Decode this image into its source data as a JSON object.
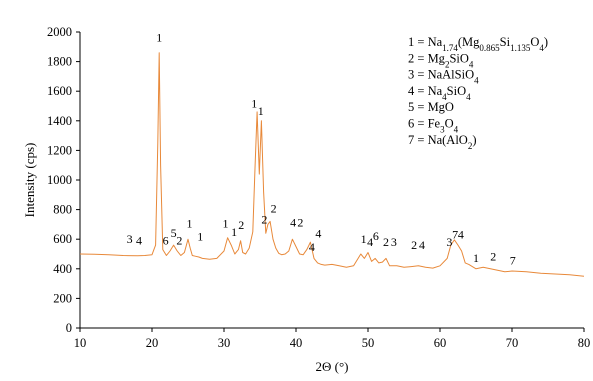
{
  "chart_data": {
    "type": "line",
    "xlabel": "2Θ (°)",
    "ylabel": "Intensity (cps)",
    "xlim": [
      10,
      80
    ],
    "ylim": [
      0,
      2000
    ],
    "xticks": [
      10,
      20,
      30,
      40,
      50,
      60,
      70,
      80
    ],
    "yticks": [
      0,
      200,
      400,
      600,
      800,
      1000,
      1200,
      1400,
      1600,
      1800,
      2000
    ],
    "grid": false,
    "legend_position": "top-right",
    "series_color": "#E8893A",
    "series": [
      {
        "x": [
          10,
          12,
          14,
          16,
          18,
          19,
          20,
          20.5,
          20.8,
          21.0,
          21.2,
          21.5,
          22,
          22.5,
          23,
          23.5,
          24,
          24.5,
          25,
          25.3,
          25.6,
          26,
          26.5,
          27,
          28,
          29,
          30,
          30.5,
          31,
          31.5,
          32,
          32.3,
          32.6,
          33,
          33.5,
          34,
          34.3,
          34.6,
          34.9,
          35.2,
          35.5,
          35.8,
          36.1,
          36.4,
          36.8,
          37.2,
          37.6,
          38,
          38.5,
          39,
          39.5,
          40,
          40.5,
          41,
          41.5,
          42,
          42.5,
          43,
          43.5,
          44,
          45,
          46,
          47,
          48,
          49,
          49.5,
          50,
          50.5,
          51,
          51.5,
          52,
          52.5,
          53,
          54,
          55,
          56,
          57,
          58,
          59,
          60,
          61,
          61.5,
          62,
          62.5,
          63,
          63.5,
          64,
          65,
          66,
          67,
          68,
          69,
          70,
          72,
          74,
          76,
          78,
          80
        ],
        "y": [
          500,
          498,
          495,
          490,
          488,
          490,
          495,
          560,
          1250,
          1860,
          1100,
          530,
          490,
          520,
          560,
          520,
          490,
          510,
          600,
          540,
          490,
          485,
          480,
          470,
          465,
          470,
          520,
          610,
          560,
          500,
          530,
          590,
          510,
          500,
          540,
          650,
          1080,
          1460,
          1040,
          1400,
          920,
          640,
          700,
          720,
          600,
          540,
          505,
          495,
          500,
          520,
          600,
          550,
          500,
          495,
          530,
          580,
          470,
          440,
          430,
          425,
          430,
          420,
          410,
          420,
          500,
          470,
          510,
          450,
          470,
          440,
          445,
          470,
          420,
          420,
          410,
          415,
          420,
          410,
          405,
          420,
          470,
          560,
          595,
          560,
          520,
          440,
          430,
          400,
          410,
          400,
          390,
          380,
          385,
          380,
          370,
          365,
          360,
          350
        ]
      }
    ],
    "peak_labels": [
      {
        "text": "1",
        "x": 21.0,
        "y": 1935
      },
      {
        "text": "3",
        "x": 16.9,
        "y": 575
      },
      {
        "text": "4",
        "x": 18.2,
        "y": 565
      },
      {
        "text": "6",
        "x": 21.9,
        "y": 565
      },
      {
        "text": "5",
        "x": 23.0,
        "y": 615
      },
      {
        "text": "2",
        "x": 23.8,
        "y": 565
      },
      {
        "text": "1",
        "x": 25.2,
        "y": 680
      },
      {
        "text": "1",
        "x": 26.7,
        "y": 590
      },
      {
        "text": "1",
        "x": 30.2,
        "y": 680
      },
      {
        "text": "1",
        "x": 31.4,
        "y": 620
      },
      {
        "text": "2",
        "x": 32.4,
        "y": 670
      },
      {
        "text": "1",
        "x": 34.2,
        "y": 1490
      },
      {
        "text": "1",
        "x": 35.1,
        "y": 1440
      },
      {
        "text": "2",
        "x": 35.6,
        "y": 705
      },
      {
        "text": "2",
        "x": 36.9,
        "y": 780
      },
      {
        "text": "4",
        "x": 39.6,
        "y": 685
      },
      {
        "text": "2",
        "x": 40.6,
        "y": 685
      },
      {
        "text": "4",
        "x": 42.2,
        "y": 520
      },
      {
        "text": "4",
        "x": 43.1,
        "y": 610
      },
      {
        "text": "1",
        "x": 49.4,
        "y": 575
      },
      {
        "text": "4",
        "x": 50.3,
        "y": 555
      },
      {
        "text": "6",
        "x": 51.1,
        "y": 595
      },
      {
        "text": "2",
        "x": 52.5,
        "y": 555
      },
      {
        "text": "3",
        "x": 53.6,
        "y": 555
      },
      {
        "text": "2",
        "x": 56.4,
        "y": 535
      },
      {
        "text": "4",
        "x": 57.5,
        "y": 535
      },
      {
        "text": "3",
        "x": 61.3,
        "y": 555
      },
      {
        "text": "7",
        "x": 62.1,
        "y": 605
      },
      {
        "text": "4",
        "x": 62.9,
        "y": 605
      },
      {
        "text": "1",
        "x": 65.0,
        "y": 445
      },
      {
        "text": "2",
        "x": 67.4,
        "y": 455
      },
      {
        "text": "7",
        "x": 70.1,
        "y": 430
      }
    ],
    "legend": [
      {
        "num": "1 = ",
        "parts": [
          [
            "Na",
            ""
          ],
          [
            "1.74",
            "sub"
          ],
          [
            "(Mg",
            ""
          ],
          [
            "0.865",
            "sub"
          ],
          [
            "Si",
            ""
          ],
          [
            "1.135",
            "sub"
          ],
          [
            "O",
            ""
          ],
          [
            "4",
            "sub"
          ],
          [
            ")",
            ""
          ]
        ]
      },
      {
        "num": "2 = ",
        "parts": [
          [
            "Mg",
            ""
          ],
          [
            "2",
            "sub"
          ],
          [
            "SiO",
            ""
          ],
          [
            "4",
            "sub"
          ]
        ]
      },
      {
        "num": "3 = ",
        "parts": [
          [
            "NaAlSiO",
            ""
          ],
          [
            "4",
            "sub"
          ]
        ]
      },
      {
        "num": "4 = ",
        "parts": [
          [
            "Na",
            ""
          ],
          [
            "4",
            "sub"
          ],
          [
            "SiO",
            ""
          ],
          [
            "4",
            "sub"
          ]
        ]
      },
      {
        "num": "5 = ",
        "parts": [
          [
            "MgO",
            ""
          ]
        ]
      },
      {
        "num": "6 = ",
        "parts": [
          [
            "Fe",
            ""
          ],
          [
            "3",
            "sub"
          ],
          [
            "O",
            ""
          ],
          [
            "4",
            "sub"
          ]
        ]
      },
      {
        "num": "7 = ",
        "parts": [
          [
            "Na(AlO",
            ""
          ],
          [
            "2",
            "sub"
          ],
          [
            ")",
            ""
          ]
        ]
      }
    ]
  }
}
